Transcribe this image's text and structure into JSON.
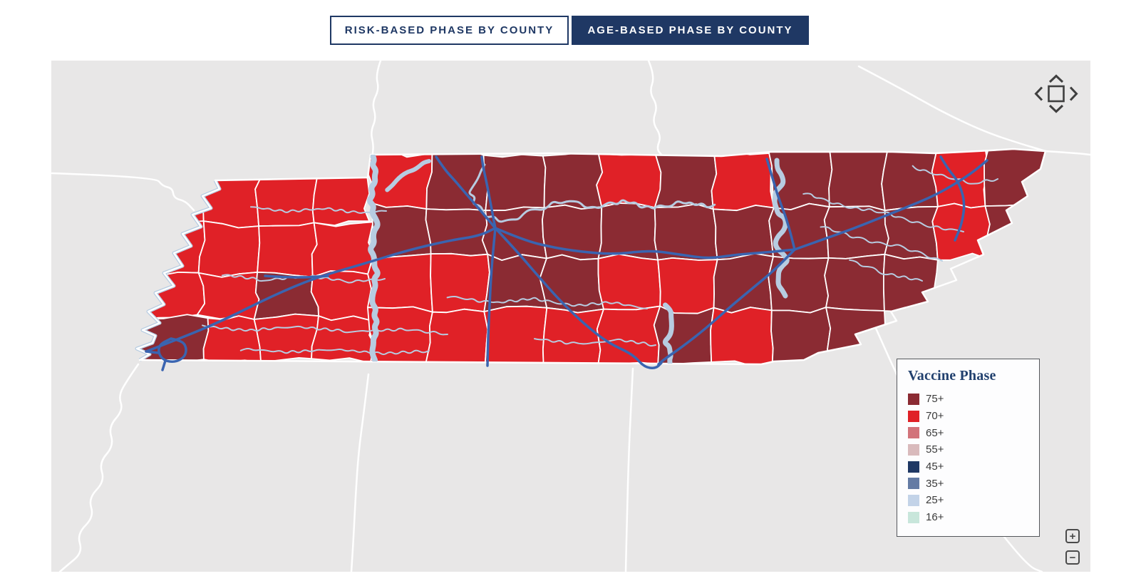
{
  "tabs": [
    {
      "label": "RISK-BASED PHASE BY COUNTY",
      "active": false
    },
    {
      "label": "AGE-BASED PHASE BY COUNTY",
      "active": true
    }
  ],
  "theme": {
    "navy": "#1f3864"
  },
  "legend": {
    "title": "Vaccine Phase",
    "items": [
      {
        "label": "75+",
        "color": "#8b2b33"
      },
      {
        "label": "70+",
        "color": "#e02127"
      },
      {
        "label": "65+",
        "color": "#d2737a"
      },
      {
        "label": "55+",
        "color": "#d9babc"
      },
      {
        "label": "45+",
        "color": "#1f3864"
      },
      {
        "label": "35+",
        "color": "#647ba4"
      },
      {
        "label": "25+",
        "color": "#c3d3e8"
      },
      {
        "label": "16+",
        "color": "#c8e6db"
      }
    ]
  },
  "controls": {
    "pan": {
      "up": "chevron-up",
      "down": "chevron-down",
      "left": "chevron-left",
      "right": "chevron-right",
      "center": "extent-square"
    },
    "zoom_in": "+",
    "zoom_out": "−"
  },
  "map": {
    "background": "#e8e7e7",
    "state_line": "#ffffff",
    "county_line": "#ffffff",
    "water": "#b7cce1",
    "highway": "#3a64b0",
    "cells": [
      [
        124,
        210,
        162,
        230,
        "70+"
      ],
      [
        210,
        290,
        162,
        230,
        "70+"
      ],
      [
        290,
        370,
        162,
        230,
        "70+"
      ],
      [
        370,
        444,
        162,
        230,
        "70+"
      ],
      [
        124,
        210,
        230,
        300,
        "70+"
      ],
      [
        210,
        290,
        230,
        300,
        "70+"
      ],
      [
        290,
        370,
        230,
        300,
        "70+"
      ],
      [
        370,
        448,
        230,
        300,
        "70+"
      ],
      [
        124,
        210,
        300,
        360,
        "70+"
      ],
      [
        210,
        290,
        300,
        360,
        "70+"
      ],
      [
        290,
        370,
        300,
        360,
        "75+"
      ],
      [
        370,
        448,
        300,
        360,
        "70+"
      ],
      [
        124,
        218,
        360,
        421,
        "75+"
      ],
      [
        218,
        290,
        360,
        421,
        "70+"
      ],
      [
        290,
        370,
        360,
        421,
        "70+"
      ],
      [
        370,
        448,
        360,
        421,
        "70+"
      ],
      [
        448,
        530,
        130,
        205,
        "70+"
      ],
      [
        530,
        610,
        130,
        205,
        "75+"
      ],
      [
        610,
        690,
        130,
        205,
        "75+"
      ],
      [
        690,
        770,
        130,
        205,
        "75+"
      ],
      [
        770,
        850,
        130,
        205,
        "70+"
      ],
      [
        850,
        930,
        130,
        205,
        "75+"
      ],
      [
        930,
        1010,
        130,
        205,
        "70+"
      ],
      [
        448,
        530,
        205,
        275,
        "75+"
      ],
      [
        530,
        610,
        205,
        275,
        "75+"
      ],
      [
        610,
        690,
        205,
        275,
        "75+"
      ],
      [
        690,
        770,
        205,
        275,
        "75+"
      ],
      [
        770,
        850,
        205,
        275,
        "75+"
      ],
      [
        850,
        930,
        205,
        275,
        "75+"
      ],
      [
        930,
        1010,
        205,
        275,
        "75+"
      ],
      [
        448,
        530,
        275,
        350,
        "70+"
      ],
      [
        530,
        610,
        275,
        350,
        "70+"
      ],
      [
        610,
        690,
        275,
        350,
        "75+"
      ],
      [
        690,
        770,
        275,
        350,
        "75+"
      ],
      [
        770,
        850,
        275,
        350,
        "70+"
      ],
      [
        850,
        930,
        275,
        350,
        "70+"
      ],
      [
        930,
        1010,
        275,
        350,
        "75+"
      ],
      [
        448,
        530,
        350,
        426,
        "70+"
      ],
      [
        530,
        610,
        350,
        426,
        "70+"
      ],
      [
        610,
        690,
        350,
        426,
        "70+"
      ],
      [
        690,
        770,
        350,
        426,
        "70+"
      ],
      [
        770,
        850,
        350,
        426,
        "70+"
      ],
      [
        850,
        930,
        350,
        426,
        "75+"
      ],
      [
        930,
        1010,
        350,
        426,
        "70+"
      ],
      [
        1010,
        1090,
        124,
        205,
        "75+"
      ],
      [
        1090,
        1170,
        124,
        205,
        "75+"
      ],
      [
        1170,
        1240,
        124,
        205,
        "75+"
      ],
      [
        1240,
        1313,
        124,
        205,
        "70+"
      ],
      [
        1313,
        1398,
        118,
        205,
        "75+"
      ],
      [
        1010,
        1090,
        205,
        275,
        "75+"
      ],
      [
        1090,
        1170,
        205,
        275,
        "75+"
      ],
      [
        1170,
        1240,
        205,
        275,
        "75+"
      ],
      [
        1240,
        1313,
        205,
        275,
        "70+"
      ],
      [
        1313,
        1398,
        205,
        275,
        "75+"
      ],
      [
        1010,
        1090,
        275,
        350,
        "75+"
      ],
      [
        1090,
        1170,
        275,
        350,
        "75+"
      ],
      [
        1170,
        1240,
        275,
        350,
        "75+"
      ],
      [
        1010,
        1090,
        350,
        426,
        "75+"
      ],
      [
        1090,
        1170,
        350,
        426,
        "75+"
      ]
    ]
  }
}
